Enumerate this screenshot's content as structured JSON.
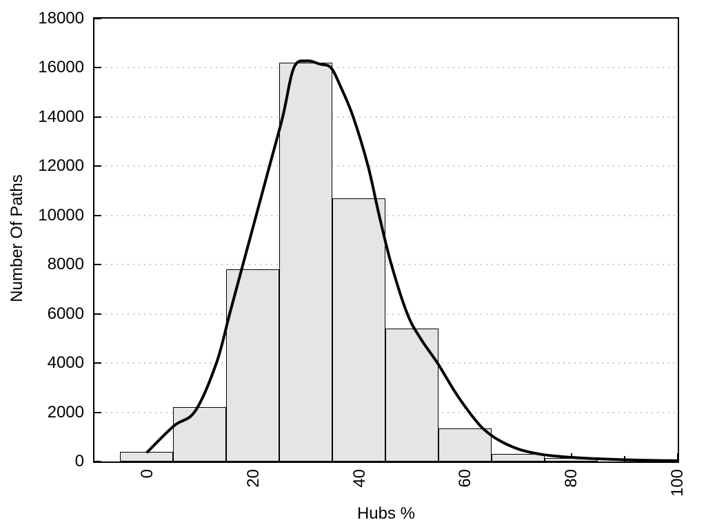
{
  "chart_data": {
    "type": "bar+line",
    "subtype": "histogram with smoothed density curve",
    "title": "",
    "xlabel": "Hubs %",
    "ylabel": "Number Of Paths",
    "xlim": [
      -10,
      100
    ],
    "ylim": [
      0,
      18000
    ],
    "x_major_ticks": [
      0,
      20,
      40,
      60,
      80,
      100
    ],
    "x_minor_ticks": [
      10,
      30,
      50,
      70,
      90
    ],
    "y_ticks": [
      0,
      2000,
      4000,
      6000,
      8000,
      10000,
      12000,
      14000,
      16000,
      18000
    ],
    "grid": "horizontal dotted lines at y major ticks",
    "legend_position": "none",
    "x_tick_label_rotation_deg": -90,
    "bars": {
      "bin_width": 10,
      "bin_centers": [
        0,
        10,
        20,
        30,
        40,
        50,
        60,
        70,
        80
      ],
      "bin_edges": [
        -5,
        5,
        15,
        25,
        35,
        45,
        55,
        65,
        75,
        85
      ],
      "values": [
        400,
        2200,
        7800,
        16200,
        10700,
        5400,
        1350,
        300,
        150
      ]
    },
    "curve": {
      "name": "smoothed-frequency-curve",
      "points": [
        [
          0,
          390
        ],
        [
          5,
          1450
        ],
        [
          9,
          2050
        ],
        [
          13,
          4000
        ],
        [
          15.5,
          6000
        ],
        [
          18,
          8000
        ],
        [
          20.5,
          10000
        ],
        [
          23,
          12000
        ],
        [
          25.5,
          14000
        ],
        [
          27.6,
          16000
        ],
        [
          30,
          16280
        ],
        [
          32.5,
          16150
        ],
        [
          34.6,
          16000
        ],
        [
          36.5,
          15200
        ],
        [
          38.8,
          14000
        ],
        [
          41.6,
          12000
        ],
        [
          43.7,
          10000
        ],
        [
          46,
          8000
        ],
        [
          49,
          6000
        ],
        [
          51.5,
          5000
        ],
        [
          54.7,
          4000
        ],
        [
          57.5,
          3000
        ],
        [
          60,
          2200
        ],
        [
          63,
          1400
        ],
        [
          66,
          900
        ],
        [
          70,
          500
        ],
        [
          74,
          300
        ],
        [
          78,
          200
        ],
        [
          82,
          140
        ],
        [
          86,
          100
        ],
        [
          90,
          70
        ],
        [
          95,
          45
        ],
        [
          100,
          30
        ]
      ]
    },
    "colors": {
      "bar_fill": "#e5e5e5",
      "bar_border": "#000000",
      "curve": "#000000",
      "grid": "#c9c9c9",
      "axis": "#000000",
      "background": "#ffffff"
    }
  }
}
